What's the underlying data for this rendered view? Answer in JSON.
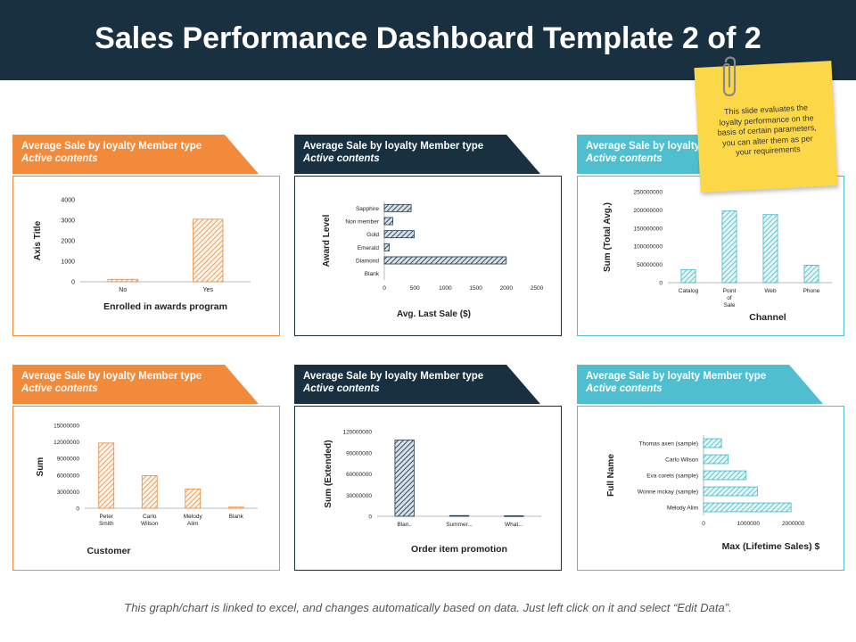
{
  "header": {
    "title": "Sales Performance Dashboard Template 2 of 2"
  },
  "note": {
    "text": "This slide evaluates the loyalty performance on the basis of certain parameters, you can alter them as per your requirements"
  },
  "footer": {
    "text": "This graph/chart is linked to excel, and changes automatically based on data. Just left click on it and select “Edit Data”."
  },
  "colors": {
    "orange": "#f28a3c",
    "navy": "#193040",
    "teal": "#4fbfcf"
  },
  "panels": [
    {
      "title": "Average Sale by loyalty Member type",
      "subtitle": "Active contents"
    },
    {
      "title": "Average Sale by loyalty Member type",
      "subtitle": "Active contents"
    },
    {
      "title": "Average Sale by loyalty Member type",
      "subtitle": "Active contents"
    },
    {
      "title": "Average Sale by loyalty Member type",
      "subtitle": "Active contents"
    },
    {
      "title": "Average Sale by loyalty Member type",
      "subtitle": "Active contents"
    },
    {
      "title": "Average Sale by loyalty Member type",
      "subtitle": "Active contents"
    }
  ],
  "chart_data": [
    {
      "type": "bar",
      "orientation": "vertical",
      "categories": [
        "No",
        "Yes"
      ],
      "values": [
        120,
        3050
      ],
      "xlabel": "Enrolled in awards program",
      "ylabel": "Axis Title",
      "ylim": [
        0,
        4000
      ],
      "yticks": [
        "0",
        "1000",
        "2000",
        "3000",
        "4000"
      ],
      "theme": "orange"
    },
    {
      "type": "bar",
      "orientation": "horizontal",
      "categories": [
        "Sapphire",
        "Non member",
        "Gold",
        "Emerald",
        "Diamond",
        "Blank"
      ],
      "values": [
        440,
        140,
        490,
        80,
        2000,
        0
      ],
      "xlabel": "Avg. Last Sale ($)",
      "ylabel": "Award Level",
      "xlim": [
        0,
        2500
      ],
      "xticks": [
        "0",
        "500",
        "1000",
        "1500",
        "2000",
        "2500"
      ],
      "theme": "navy"
    },
    {
      "type": "bar",
      "orientation": "vertical",
      "categories": [
        "Catalog",
        "Point of Sale",
        "Web",
        "Phone"
      ],
      "values": [
        36000000,
        197000000,
        187000000,
        48000000
      ],
      "xlabel": "Channel",
      "ylabel": "Sum (Total Avg.)",
      "ylim": [
        0,
        250000000
      ],
      "yticks": [
        "0",
        "50000000",
        "100000000",
        "150000000",
        "200000000",
        "250000000"
      ],
      "theme": "teal"
    },
    {
      "type": "bar",
      "orientation": "vertical",
      "categories": [
        "Peter Smith",
        "Carlo Wilson",
        "Melody Alim",
        "Blank"
      ],
      "values": [
        11800000,
        5900000,
        3500000,
        200000
      ],
      "xlabel": "Customer",
      "ylabel": "Sum",
      "ylim": [
        0,
        15000000
      ],
      "yticks": [
        "0",
        "3000000",
        "6000000",
        "9000000",
        "12000000",
        "15000000"
      ],
      "theme": "orange"
    },
    {
      "type": "bar",
      "orientation": "vertical",
      "categories": [
        "Blan..",
        "Summer...",
        "What..."
      ],
      "values": [
        108000000,
        1000000,
        700000
      ],
      "xlabel": "Order item promotion",
      "ylabel": "Sum (Extended)",
      "ylim": [
        0,
        120000000
      ],
      "yticks": [
        "0",
        "30000000",
        "60000000",
        "90000000",
        "120000000"
      ],
      "theme": "navy"
    },
    {
      "type": "bar",
      "orientation": "horizontal",
      "categories": [
        "Thomas axen (sample)",
        "Carlo Wilson",
        "Eva corets (sample)",
        "Wonne mckay (sample)",
        "Melody Alim"
      ],
      "values": [
        400000,
        550000,
        950000,
        1200000,
        1950000
      ],
      "xlabel": "Max (Lifetime Sales) $",
      "ylabel": "Full Name",
      "xlim": [
        0,
        3000000
      ],
      "xticks": [
        "0",
        "1000000",
        "2000000"
      ],
      "theme": "teal"
    }
  ]
}
